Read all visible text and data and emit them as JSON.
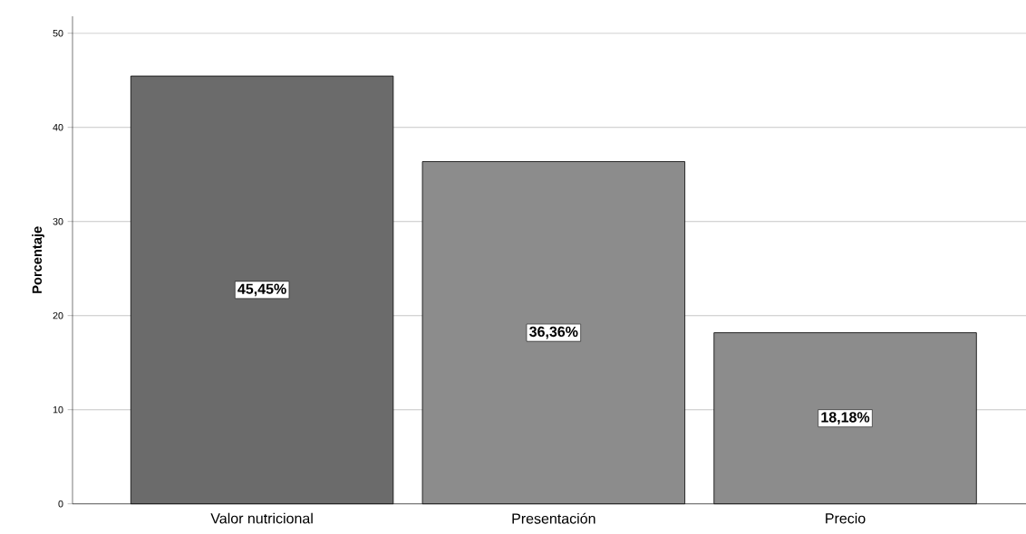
{
  "chart_data": {
    "type": "bar",
    "ylabel": "Porcentaje",
    "categories": [
      "Valor nutricional",
      "Presentación",
      "Precio"
    ],
    "values": [
      45.45,
      36.36,
      18.18
    ],
    "value_labels": [
      "45,45%",
      "36,36%",
      "18,18%"
    ],
    "colors": [
      "#6b6b6b",
      "#8c8c8c",
      "#8c8c8c"
    ],
    "ylim": [
      0,
      51.8
    ],
    "yticks": [
      0,
      10,
      20,
      30,
      40,
      50
    ],
    "grid": "y"
  }
}
